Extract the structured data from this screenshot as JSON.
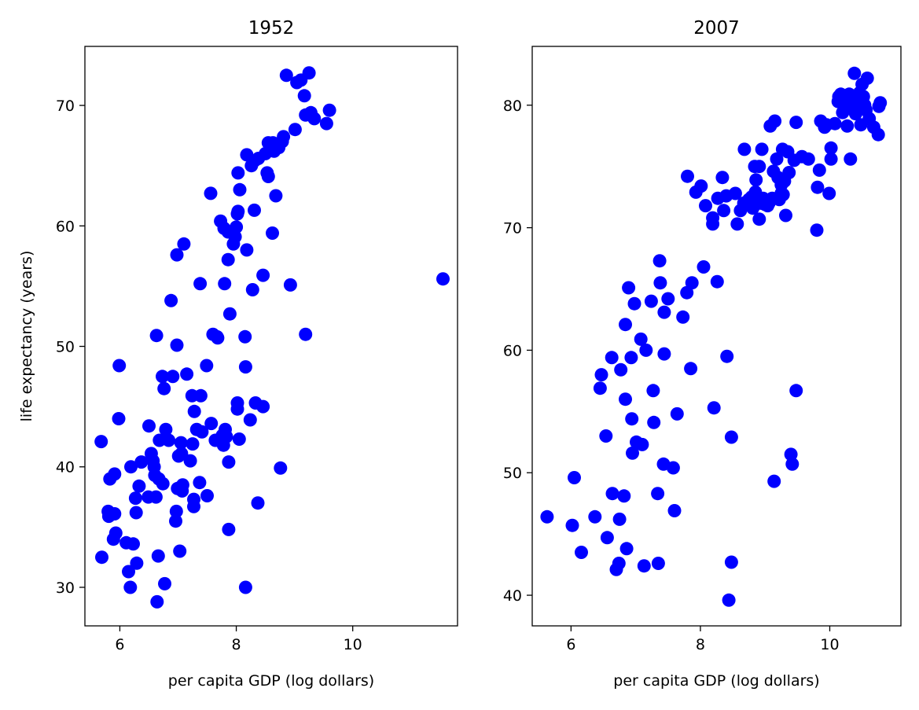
{
  "chart_data": [
    {
      "type": "scatter",
      "title": "1952",
      "xlabel": "per capita GDP (log dollars)",
      "ylabel": "life expectancy (years)",
      "xlim": [
        5.4,
        11.8
      ],
      "ylim": [
        26.8,
        74.9
      ],
      "xticks": [
        6,
        8,
        10
      ],
      "yticks": [
        30,
        40,
        50,
        60,
        70
      ],
      "grid": false,
      "marker_color": "#0000ff",
      "points": [
        [
          5.68,
          42.1
        ],
        [
          5.69,
          32.5
        ],
        [
          5.8,
          36.3
        ],
        [
          5.81,
          35.9
        ],
        [
          5.83,
          39.0
        ],
        [
          5.89,
          34.0
        ],
        [
          5.91,
          36.1
        ],
        [
          5.91,
          39.4
        ],
        [
          5.93,
          34.5
        ],
        [
          5.98,
          44.0
        ],
        [
          5.99,
          48.4
        ],
        [
          6.11,
          33.7
        ],
        [
          6.15,
          31.3
        ],
        [
          6.18,
          30.0
        ],
        [
          6.19,
          40.0
        ],
        [
          6.23,
          33.6
        ],
        [
          6.27,
          37.4
        ],
        [
          6.28,
          36.2
        ],
        [
          6.29,
          32.0
        ],
        [
          6.33,
          38.4
        ],
        [
          6.37,
          40.4
        ],
        [
          6.49,
          37.5
        ],
        [
          6.5,
          43.4
        ],
        [
          6.54,
          41.1
        ],
        [
          6.57,
          40.5
        ],
        [
          6.59,
          40.0
        ],
        [
          6.6,
          39.3
        ],
        [
          6.62,
          37.5
        ],
        [
          6.63,
          50.9
        ],
        [
          6.64,
          28.8
        ],
        [
          6.66,
          32.6
        ],
        [
          6.67,
          39.0
        ],
        [
          6.68,
          42.2
        ],
        [
          6.73,
          47.5
        ],
        [
          6.74,
          38.6
        ],
        [
          6.76,
          46.5
        ],
        [
          6.77,
          30.3
        ],
        [
          6.79,
          43.1
        ],
        [
          6.84,
          42.2
        ],
        [
          6.88,
          53.8
        ],
        [
          6.91,
          47.5
        ],
        [
          6.96,
          35.5
        ],
        [
          6.97,
          36.3
        ],
        [
          6.98,
          57.6
        ],
        [
          6.98,
          50.1
        ],
        [
          6.99,
          38.2
        ],
        [
          7.01,
          40.9
        ],
        [
          7.03,
          33.0
        ],
        [
          7.05,
          42.0
        ],
        [
          7.06,
          41.1
        ],
        [
          7.07,
          38.0
        ],
        [
          7.08,
          38.5
        ],
        [
          7.1,
          58.5
        ],
        [
          7.15,
          47.7
        ],
        [
          7.21,
          40.5
        ],
        [
          7.24,
          45.9
        ],
        [
          7.25,
          41.9
        ],
        [
          7.27,
          36.7
        ],
        [
          7.27,
          37.3
        ],
        [
          7.28,
          44.6
        ],
        [
          7.32,
          43.1
        ],
        [
          7.37,
          38.7
        ],
        [
          7.38,
          55.2
        ],
        [
          7.39,
          45.9
        ],
        [
          7.41,
          42.9
        ],
        [
          7.49,
          48.4
        ],
        [
          7.5,
          37.6
        ],
        [
          7.56,
          62.7
        ],
        [
          7.57,
          43.6
        ],
        [
          7.6,
          51.0
        ],
        [
          7.64,
          42.2
        ],
        [
          7.67,
          50.8
        ],
        [
          7.68,
          50.7
        ],
        [
          7.73,
          60.4
        ],
        [
          7.76,
          42.6
        ],
        [
          7.78,
          41.8
        ],
        [
          7.79,
          59.8
        ],
        [
          7.8,
          55.2
        ],
        [
          7.81,
          43.1
        ],
        [
          7.83,
          42.5
        ],
        [
          7.86,
          57.2
        ],
        [
          7.86,
          59.5
        ],
        [
          7.87,
          40.4
        ],
        [
          7.87,
          34.8
        ],
        [
          7.89,
          52.7
        ],
        [
          7.95,
          58.5
        ],
        [
          7.98,
          59.1
        ],
        [
          8.0,
          59.9
        ],
        [
          8.02,
          45.3
        ],
        [
          8.02,
          44.8
        ],
        [
          8.02,
          61.0
        ],
        [
          8.03,
          64.4
        ],
        [
          8.03,
          61.2
        ],
        [
          8.05,
          42.3
        ],
        [
          8.06,
          63.0
        ],
        [
          8.15,
          50.8
        ],
        [
          8.16,
          48.3
        ],
        [
          8.16,
          30.0
        ],
        [
          8.18,
          65.9
        ],
        [
          8.18,
          58.0
        ],
        [
          8.24,
          43.9
        ],
        [
          8.26,
          65.0
        ],
        [
          8.28,
          54.7
        ],
        [
          8.31,
          61.3
        ],
        [
          8.31,
          65.4
        ],
        [
          8.33,
          45.3
        ],
        [
          8.37,
          37.0
        ],
        [
          8.38,
          65.6
        ],
        [
          8.46,
          45.0
        ],
        [
          8.46,
          55.9
        ],
        [
          8.5,
          66.0
        ],
        [
          8.53,
          64.4
        ],
        [
          8.55,
          64.1
        ],
        [
          8.55,
          66.9
        ],
        [
          8.62,
          59.4
        ],
        [
          8.63,
          66.9
        ],
        [
          8.65,
          66.2
        ],
        [
          8.68,
          62.5
        ],
        [
          8.73,
          66.5
        ],
        [
          8.76,
          39.9
        ],
        [
          8.79,
          67.0
        ],
        [
          8.81,
          67.4
        ],
        [
          8.86,
          72.5
        ],
        [
          8.93,
          55.1
        ],
        [
          9.01,
          68.0
        ],
        [
          9.04,
          71.9
        ],
        [
          9.11,
          72.1
        ],
        [
          9.17,
          70.8
        ],
        [
          9.19,
          51.0
        ],
        [
          9.19,
          69.2
        ],
        [
          9.25,
          72.7
        ],
        [
          9.28,
          69.4
        ],
        [
          9.34,
          68.9
        ],
        [
          9.55,
          68.5
        ],
        [
          9.6,
          69.6
        ],
        [
          11.55,
          55.6
        ]
      ]
    },
    {
      "type": "scatter",
      "title": "2007",
      "xlabel": "per capita GDP (log dollars)",
      "ylabel": "",
      "xlim": [
        5.4,
        11.1
      ],
      "ylim": [
        37.5,
        84.8
      ],
      "xticks": [
        6,
        8,
        10
      ],
      "yticks": [
        40,
        50,
        60,
        70,
        80
      ],
      "grid": false,
      "marker_color": "#0000ff",
      "points": [
        [
          5.63,
          46.4
        ],
        [
          6.02,
          45.7
        ],
        [
          6.05,
          49.6
        ],
        [
          6.16,
          43.5
        ],
        [
          6.37,
          46.4
        ],
        [
          6.45,
          56.9
        ],
        [
          6.47,
          58.0
        ],
        [
          6.54,
          53.0
        ],
        [
          6.56,
          44.7
        ],
        [
          6.63,
          59.4
        ],
        [
          6.64,
          48.3
        ],
        [
          6.7,
          42.1
        ],
        [
          6.74,
          42.6
        ],
        [
          6.75,
          46.2
        ],
        [
          6.77,
          58.4
        ],
        [
          6.82,
          48.1
        ],
        [
          6.84,
          62.1
        ],
        [
          6.84,
          56.0
        ],
        [
          6.86,
          43.8
        ],
        [
          6.89,
          65.1
        ],
        [
          6.93,
          59.4
        ],
        [
          6.94,
          54.4
        ],
        [
          6.95,
          51.6
        ],
        [
          6.98,
          63.8
        ],
        [
          7.01,
          52.5
        ],
        [
          7.08,
          60.9
        ],
        [
          7.1,
          52.3
        ],
        [
          7.13,
          42.4
        ],
        [
          7.16,
          60.0
        ],
        [
          7.24,
          64.0
        ],
        [
          7.27,
          56.7
        ],
        [
          7.28,
          54.1
        ],
        [
          7.34,
          48.3
        ],
        [
          7.35,
          42.6
        ],
        [
          7.37,
          67.3
        ],
        [
          7.38,
          65.5
        ],
        [
          7.43,
          50.7
        ],
        [
          7.44,
          63.1
        ],
        [
          7.44,
          59.7
        ],
        [
          7.5,
          64.2
        ],
        [
          7.58,
          50.4
        ],
        [
          7.6,
          46.9
        ],
        [
          7.64,
          54.8
        ],
        [
          7.73,
          62.7
        ],
        [
          7.79,
          64.7
        ],
        [
          7.8,
          74.2
        ],
        [
          7.85,
          58.5
        ],
        [
          7.87,
          65.5
        ],
        [
          7.93,
          72.9
        ],
        [
          8.01,
          73.4
        ],
        [
          8.05,
          66.8
        ],
        [
          8.08,
          71.8
        ],
        [
          8.19,
          70.3
        ],
        [
          8.19,
          70.8
        ],
        [
          8.21,
          55.3
        ],
        [
          8.26,
          65.6
        ],
        [
          8.27,
          72.4
        ],
        [
          8.34,
          74.1
        ],
        [
          8.36,
          71.4
        ],
        [
          8.4,
          72.6
        ],
        [
          8.41,
          59.5
        ],
        [
          8.44,
          39.6
        ],
        [
          8.48,
          52.9
        ],
        [
          8.48,
          42.7
        ],
        [
          8.54,
          72.8
        ],
        [
          8.57,
          70.3
        ],
        [
          8.62,
          71.4
        ],
        [
          8.67,
          72.0
        ],
        [
          8.68,
          76.4
        ],
        [
          8.75,
          72.3
        ],
        [
          8.79,
          72.5
        ],
        [
          8.81,
          71.6
        ],
        [
          8.84,
          75.0
        ],
        [
          8.85,
          72.9
        ],
        [
          8.86,
          73.9
        ],
        [
          8.87,
          72.4
        ],
        [
          8.91,
          70.7
        ],
        [
          8.91,
          75.0
        ],
        [
          8.93,
          72.0
        ],
        [
          8.95,
          76.4
        ],
        [
          8.97,
          72.4
        ],
        [
          9.0,
          71.9
        ],
        [
          9.04,
          71.8
        ],
        [
          9.06,
          72.0
        ],
        [
          9.08,
          78.3
        ],
        [
          9.11,
          72.4
        ],
        [
          9.13,
          74.6
        ],
        [
          9.14,
          49.3
        ],
        [
          9.15,
          78.7
        ],
        [
          9.18,
          75.6
        ],
        [
          9.2,
          74.1
        ],
        [
          9.22,
          72.3
        ],
        [
          9.25,
          72.8
        ],
        [
          9.25,
          73.5
        ],
        [
          9.27,
          76.4
        ],
        [
          9.28,
          72.7
        ],
        [
          9.3,
          73.8
        ],
        [
          9.32,
          71.0
        ],
        [
          9.35,
          76.2
        ],
        [
          9.37,
          74.5
        ],
        [
          9.4,
          51.5
        ],
        [
          9.42,
          50.7
        ],
        [
          9.45,
          75.5
        ],
        [
          9.48,
          78.6
        ],
        [
          9.48,
          56.7
        ],
        [
          9.57,
          75.8
        ],
        [
          9.67,
          75.6
        ],
        [
          9.8,
          69.8
        ],
        [
          9.81,
          73.3
        ],
        [
          9.84,
          74.7
        ],
        [
          9.86,
          78.7
        ],
        [
          9.92,
          78.2
        ],
        [
          9.95,
          78.4
        ],
        [
          9.99,
          72.8
        ],
        [
          10.02,
          76.5
        ],
        [
          10.02,
          75.6
        ],
        [
          10.08,
          78.5
        ],
        [
          10.13,
          80.3
        ],
        [
          10.14,
          80.7
        ],
        [
          10.17,
          80.9
        ],
        [
          10.2,
          79.4
        ],
        [
          10.23,
          80.2
        ],
        [
          10.27,
          78.3
        ],
        [
          10.3,
          80.9
        ],
        [
          10.31,
          80.3
        ],
        [
          10.32,
          75.6
        ],
        [
          10.35,
          79.8
        ],
        [
          10.38,
          82.6
        ],
        [
          10.4,
          79.3
        ],
        [
          10.44,
          80.5
        ],
        [
          10.46,
          81.0
        ],
        [
          10.48,
          78.4
        ],
        [
          10.5,
          81.7
        ],
        [
          10.52,
          80.7
        ],
        [
          10.54,
          80.0
        ],
        [
          10.56,
          79.6
        ],
        [
          10.58,
          82.2
        ],
        [
          10.61,
          78.9
        ],
        [
          10.68,
          78.2
        ],
        [
          10.75,
          77.6
        ],
        [
          10.76,
          79.9
        ],
        [
          10.78,
          80.2
        ]
      ]
    }
  ]
}
